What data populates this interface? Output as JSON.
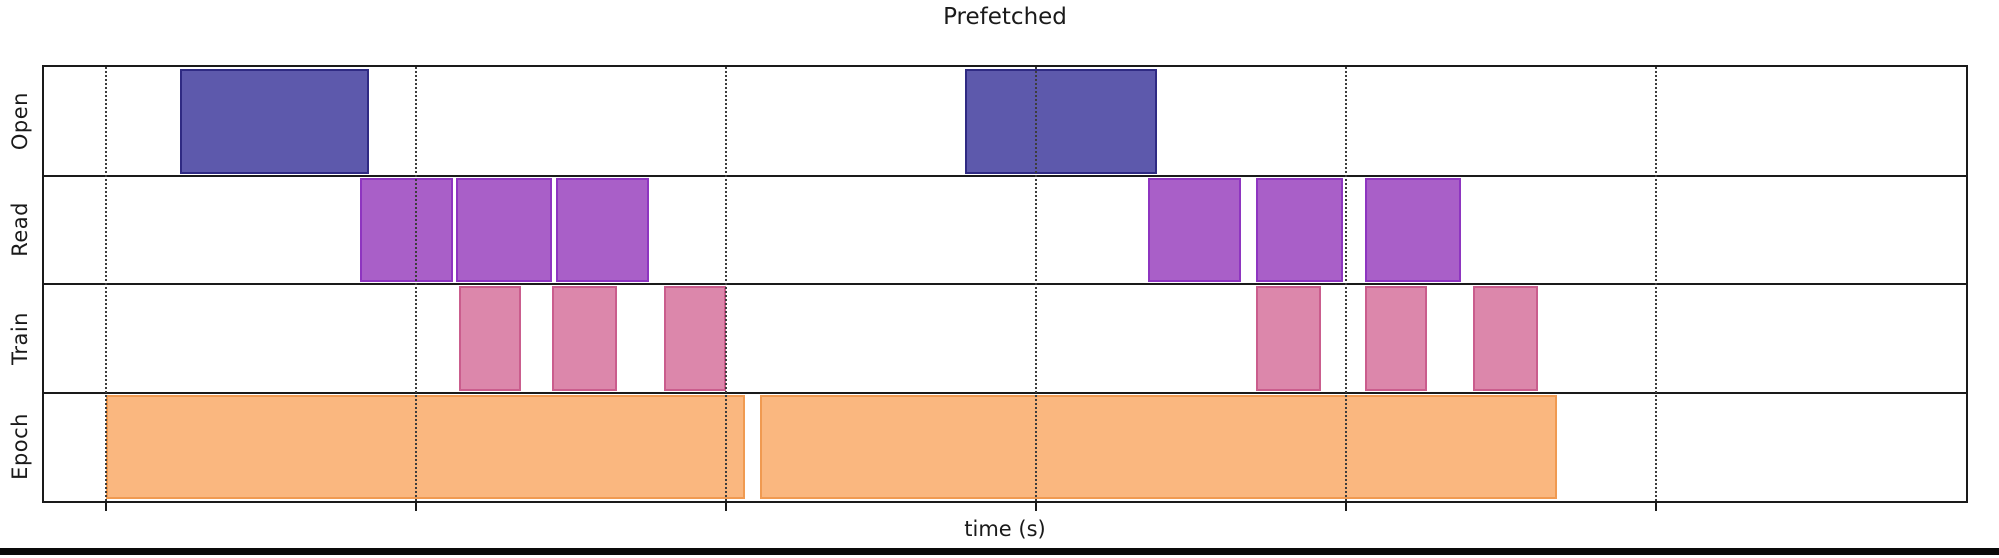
{
  "figure": {
    "title": "Prefetched",
    "xlabel": "time (s)"
  },
  "chart_data": {
    "type": "broken_barh",
    "title": "Prefetched",
    "xlabel": "time (s)",
    "xlim": [
      -0.2,
      6.0
    ],
    "gridlines_x": [
      0,
      1,
      2,
      3,
      4,
      5
    ],
    "grid_style": "dotted-vertical",
    "x_tick_labels_visible": false,
    "x_units_note": "axis shows tick marks without numeric labels; values below are in gridline-interval units from the first gridline",
    "legend_position": "none",
    "rows": [
      {
        "label": "Open",
        "fill": "#5d59ac",
        "edge": "#2f2a83",
        "intervals": [
          [
            0.24,
            0.85
          ],
          [
            2.77,
            3.39
          ]
        ]
      },
      {
        "label": "Read",
        "fill": "#a95fc8",
        "edge": "#8e35c0",
        "intervals": [
          [
            0.82,
            1.12
          ],
          [
            1.13,
            1.44
          ],
          [
            1.45,
            1.75
          ],
          [
            3.36,
            3.66
          ],
          [
            3.71,
            3.99
          ],
          [
            4.06,
            4.37
          ]
        ]
      },
      {
        "label": "Train",
        "fill": "#dc87ab",
        "edge": "#ca5d8d",
        "intervals": [
          [
            1.14,
            1.34
          ],
          [
            1.44,
            1.65
          ],
          [
            1.8,
            2.0
          ],
          [
            3.71,
            3.92
          ],
          [
            4.06,
            4.26
          ],
          [
            4.41,
            4.62
          ]
        ]
      },
      {
        "label": "Epoch",
        "fill": "#fab77f",
        "edge": "#f09a51",
        "intervals": [
          [
            0.0,
            2.06
          ],
          [
            2.11,
            4.68
          ]
        ]
      }
    ]
  },
  "colors": {
    "background": "#ffffff",
    "frame": "#1a1a1a",
    "grid": "#3d3d3d",
    "text": "#1a1a1a",
    "window_edge": "#0a0a0a"
  }
}
